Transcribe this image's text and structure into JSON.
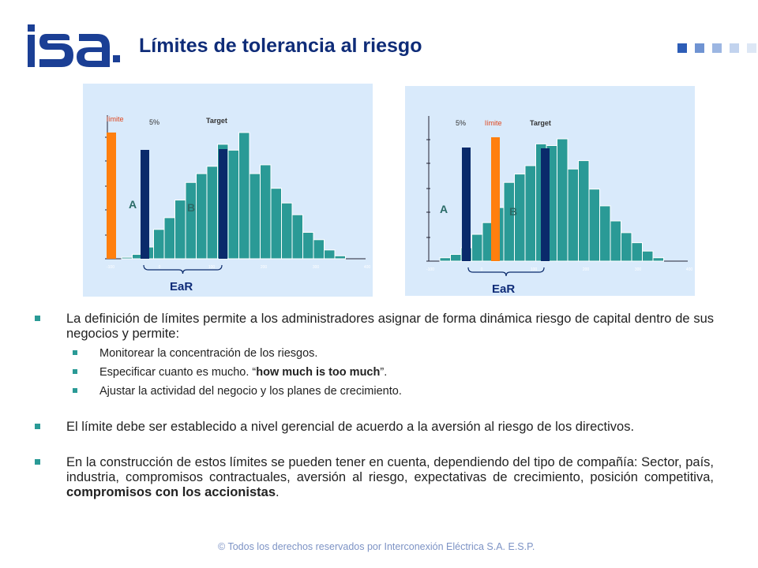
{
  "header": {
    "logo_text": "isa",
    "title": "Límites de tolerancia al riesgo"
  },
  "colors": {
    "title": "#0f2c78",
    "logo": "#1b3f95",
    "teal": "#2a9a96",
    "navy": "#0a2a6b",
    "orange": "#ff7f0e",
    "panel": "#d9eafb",
    "footer": "#7d93c5"
  },
  "chart_data": [
    {
      "type": "bar",
      "title": "",
      "values": [
        1,
        3,
        8,
        20,
        28,
        40,
        52,
        58,
        63,
        78,
        74,
        86,
        58,
        64,
        48,
        38,
        30,
        18,
        13,
        6,
        2
      ],
      "x_tick_labels": [
        "-100",
        "0",
        "100",
        "200",
        "300",
        "400"
      ],
      "markers": [
        {
          "label": "límite",
          "kind": "limit",
          "color": "#ff7f0e"
        },
        {
          "label": "5%",
          "kind": "percentile",
          "color": "#0a2a6b"
        },
        {
          "label": "Target",
          "kind": "target",
          "color": "#0a2a6b"
        }
      ],
      "region_labels": [
        "A",
        "B"
      ],
      "brace_label": "EaR"
    },
    {
      "type": "bar",
      "title": "",
      "values": [
        2,
        4,
        8,
        16,
        23,
        32,
        47,
        52,
        57,
        70,
        69,
        73,
        55,
        60,
        43,
        33,
        24,
        17,
        11,
        6,
        2
      ],
      "x_tick_labels": [
        "-100",
        "0",
        "100",
        "200",
        "300",
        "400"
      ],
      "markers": [
        {
          "label": "5%",
          "kind": "percentile",
          "color": "#0a2a6b"
        },
        {
          "label": "límite",
          "kind": "limit",
          "color": "#ff7f0e"
        },
        {
          "label": "Target",
          "kind": "target",
          "color": "#0a2a6b"
        }
      ],
      "region_labels": [
        "A",
        "B"
      ],
      "brace_label": "EaR"
    }
  ],
  "body": {
    "b1": "La definición de límites permite a los administradores asignar de forma dinámica riesgo de capital dentro de sus negocios y permite:",
    "s1": "Monitorear la concentración de los riesgos.",
    "s2_pre": "Especificar cuanto es mucho. “",
    "s2_bold": "how much is too much",
    "s2_post": "”.",
    "s3": "Ajustar la actividad del negocio y los planes de crecimiento.",
    "b2": "El límite debe ser establecido a nivel gerencial de acuerdo a la aversión al riesgo de los directivos.",
    "b3_pre": "En la construcción de estos límites se pueden tener en cuenta, dependiendo del tipo de compañía: Sector, país, industria, compromisos contractuales, aversión al riesgo, expectativas de crecimiento, posición competitiva, ",
    "b3_bold": "compromisos con los accionistas",
    "b3_post": "."
  },
  "footer": "© Todos los derechos reservados por Interconexión Eléctrica S.A. E.S.P."
}
